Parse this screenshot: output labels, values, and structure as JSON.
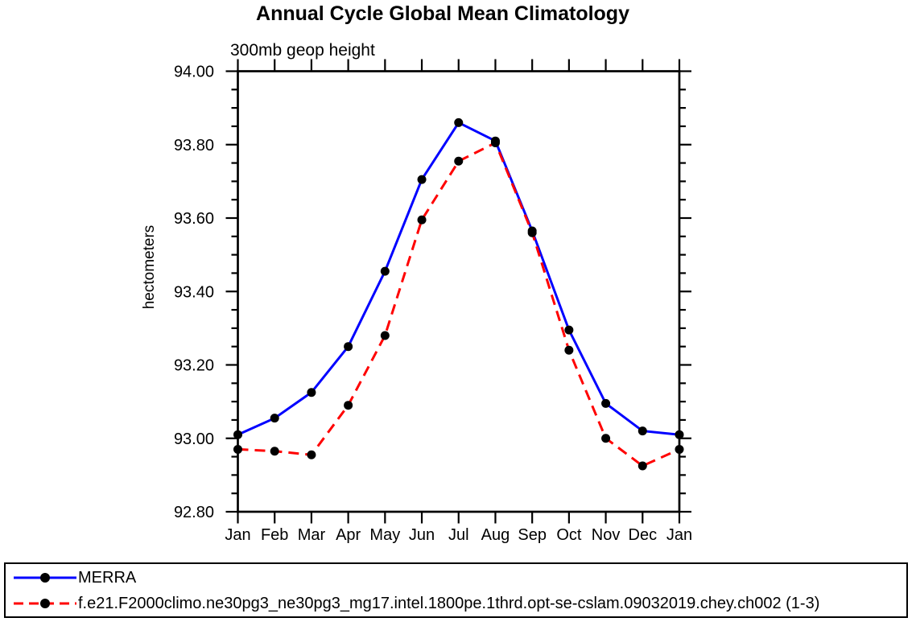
{
  "chart_data": {
    "type": "line",
    "title": "Annual Cycle Global Mean Climatology",
    "subtitle": "300mb geop height",
    "ylabel": "hectometers",
    "x_categories": [
      "Jan",
      "Feb",
      "Mar",
      "Apr",
      "May",
      "Jun",
      "Jul",
      "Aug",
      "Sep",
      "Oct",
      "Nov",
      "Dec",
      "Jan"
    ],
    "ylim": [
      92.8,
      94.0
    ],
    "ytick_step": 0.2,
    "yminor_step": 0.05,
    "ytick_labels": [
      "94.00",
      "93.80",
      "93.60",
      "93.40",
      "93.20",
      "93.00",
      "92.80"
    ],
    "grid": false,
    "legend_position": "bottom-left-box",
    "axis_color": "#000000",
    "marker_color": "#000000",
    "series": [
      {
        "name": "MERRA",
        "color": "#0000ff",
        "line_style": "solid",
        "marker": "filled-circle",
        "values": [
          93.01,
          93.055,
          93.125,
          93.25,
          93.455,
          93.705,
          93.86,
          93.81,
          93.565,
          93.295,
          93.095,
          93.02,
          93.01
        ]
      },
      {
        "name": "f.e21.F2000climo.ne30pg3_ne30pg3_mg17.intel.1800pe.1thrd.opt-se-cslam.09032019.chey.ch002 (1-3)",
        "color": "#ff0000",
        "line_style": "dashed",
        "marker": "filled-circle",
        "values": [
          92.97,
          92.965,
          92.955,
          93.09,
          93.28,
          93.595,
          93.755,
          93.805,
          93.56,
          93.24,
          93.0,
          92.925,
          92.97
        ]
      }
    ]
  }
}
